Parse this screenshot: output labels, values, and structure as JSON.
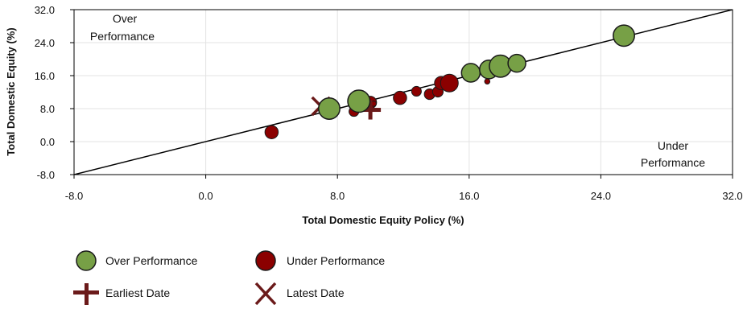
{
  "chart_data": {
    "type": "scatter",
    "xlabel": "Total Domestic Equity Policy (%)",
    "ylabel": "Total Domestic Equity (%)",
    "xlim": [
      -8,
      32
    ],
    "ylim": [
      -8,
      32
    ],
    "x_ticks": [
      "-8.0",
      "0.0",
      "8.0",
      "16.0",
      "24.0",
      "32.0"
    ],
    "y_ticks": [
      "-8.0",
      "0.0",
      "8.0",
      "16.0",
      "24.0",
      "32.0"
    ],
    "reference_line": {
      "from": [
        -8,
        -8
      ],
      "to": [
        32,
        32
      ]
    },
    "annotations": {
      "over": [
        "Over",
        "Performance"
      ],
      "under": [
        "Under",
        "Performance"
      ]
    },
    "legend": {
      "over": "Over Performance",
      "under": "Under Performance",
      "earliest": "Earliest Date",
      "latest": "Latest Date"
    },
    "colors": {
      "over": "#77a046",
      "under": "#8b0000",
      "marker": "#6b1a1a",
      "outline": "#1a1a1a",
      "line": "#000000"
    },
    "over_points": [
      {
        "x": 7.5,
        "y": 8.0,
        "r": 1.2
      },
      {
        "x": 9.3,
        "y": 9.8,
        "r": 1.25
      },
      {
        "x": 16.1,
        "y": 16.7,
        "r": 1.05
      },
      {
        "x": 17.2,
        "y": 17.5,
        "r": 1.05
      },
      {
        "x": 17.9,
        "y": 18.3,
        "r": 1.25
      },
      {
        "x": 18.9,
        "y": 19.0,
        "r": 1.0
      },
      {
        "x": 25.4,
        "y": 25.7,
        "r": 1.2
      }
    ],
    "under_points": [
      {
        "x": 4.0,
        "y": 2.3,
        "r": 0.75
      },
      {
        "x": 9.0,
        "y": 7.3,
        "r": 0.55
      },
      {
        "x": 10.0,
        "y": 9.5,
        "r": 0.7
      },
      {
        "x": 10.2,
        "y": 9.2,
        "r": 0.3
      },
      {
        "x": 11.8,
        "y": 10.6,
        "r": 0.75
      },
      {
        "x": 12.8,
        "y": 12.2,
        "r": 0.55
      },
      {
        "x": 13.6,
        "y": 11.5,
        "r": 0.6
      },
      {
        "x": 14.1,
        "y": 12.1,
        "r": 0.6
      },
      {
        "x": 14.3,
        "y": 14.2,
        "r": 0.75
      },
      {
        "x": 14.8,
        "y": 14.2,
        "r": 1.0
      },
      {
        "x": 17.1,
        "y": 14.6,
        "r": 0.3
      }
    ],
    "earliest": {
      "x": 10.0,
      "y": 7.7
    },
    "latest": {
      "x": 7.0,
      "y": 8.6
    }
  }
}
